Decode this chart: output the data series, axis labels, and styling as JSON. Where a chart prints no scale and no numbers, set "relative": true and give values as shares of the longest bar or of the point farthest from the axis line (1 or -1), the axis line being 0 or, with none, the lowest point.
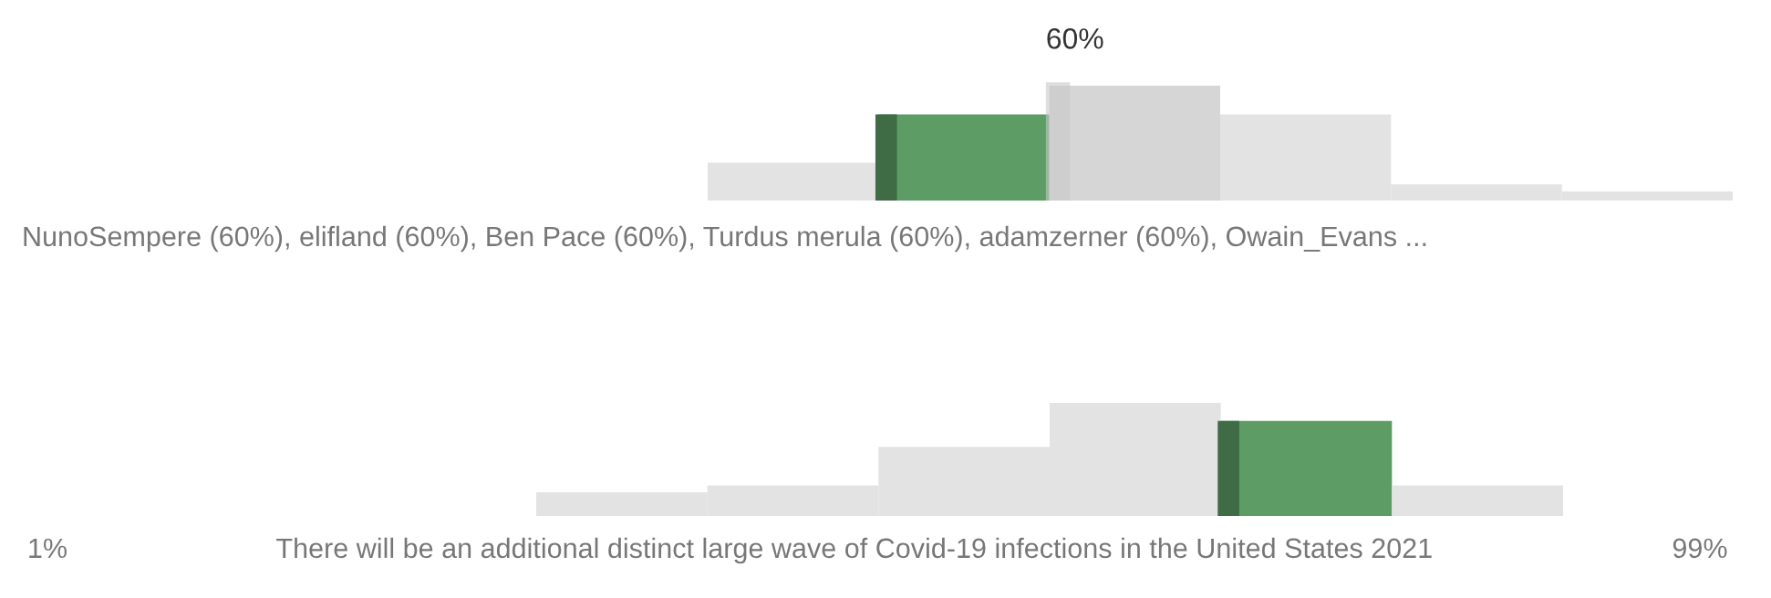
{
  "chart_data": [
    {
      "type": "bar",
      "relative": true,
      "categories": [
        null,
        null,
        null,
        null,
        null,
        null
      ],
      "values": [
        0.33,
        0.75,
        1,
        0.75,
        0.14,
        0.08
      ],
      "colors": [
        "#e3e3e3",
        "#5e9c66",
        "#d6d6d6",
        "#e3e3e3",
        "#e3e3e3",
        "#e3e3e3"
      ],
      "annotations": [
        "60%",
        "NunoSempere (60%), elifland (60%), Ben Pace (60%), Turdus merula (60%), adamzerner (60%), Owain_Evans ..."
      ]
    },
    {
      "type": "bar",
      "relative": true,
      "categories": [
        null,
        null,
        null,
        null,
        null,
        null
      ],
      "values": [
        0.21,
        0.27,
        0.61,
        1,
        0.84,
        0.27
      ],
      "colors": [
        "#e3e3e3",
        "#e3e3e3",
        "#e3e3e3",
        "#e3e3e3",
        "#5e9c66",
        "#e3e3e3"
      ],
      "xlabel": "There will be an additional distinct large wave of Covid-19 infections in the United States 2021",
      "annotations": [
        "1%",
        "99%"
      ]
    }
  ]
}
